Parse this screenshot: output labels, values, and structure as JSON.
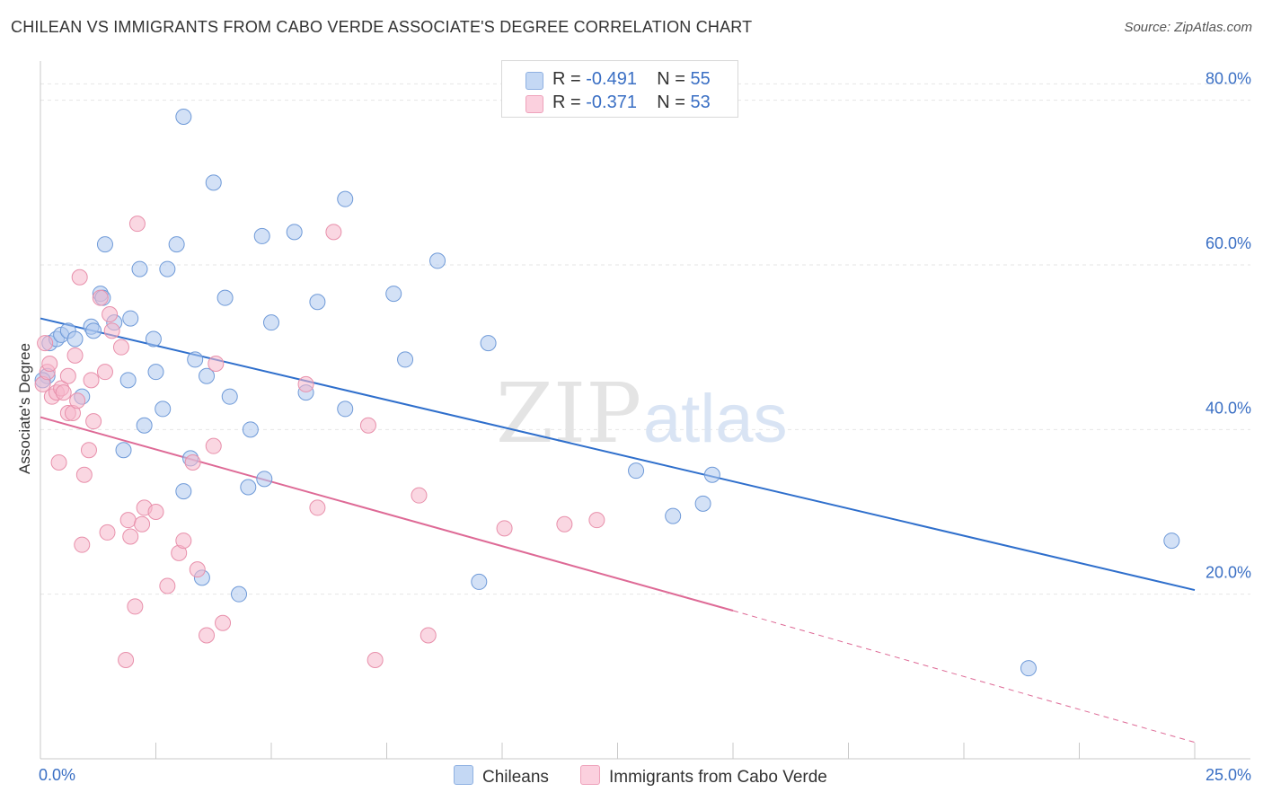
{
  "header": {
    "title": "CHILEAN VS IMMIGRANTS FROM CABO VERDE ASSOCIATE'S DEGREE CORRELATION CHART",
    "source": "Source: ZipAtlas.com"
  },
  "watermark": {
    "part1": "ZIP",
    "part2": "atlas"
  },
  "legend": {
    "rows": [
      {
        "r_label": "R =",
        "r_value": "-0.491",
        "n_label": "N =",
        "n_value": "55",
        "color": "#aec8ee"
      },
      {
        "r_label": "R =",
        "r_value": "-0.371",
        "n_label": "N =",
        "n_value": "53",
        "color": "#f6b7cb"
      }
    ]
  },
  "bottom_legend": {
    "series1": "Chileans",
    "series2": "Immigrants from Cabo Verde"
  },
  "chart_data": {
    "type": "scatter",
    "title": "CHILEAN VS IMMIGRANTS FROM CABO VERDE ASSOCIATE'S DEGREE CORRELATION CHART",
    "xlabel": "",
    "ylabel": "Associate's Degree",
    "xlim": [
      0,
      25
    ],
    "ylim": [
      0,
      84
    ],
    "x_ticks": [
      "0.0%",
      "25.0%"
    ],
    "y_ticks": [
      {
        "value": 20,
        "label": "20.0%"
      },
      {
        "value": 40,
        "label": "40.0%"
      },
      {
        "value": 60,
        "label": "60.0%"
      },
      {
        "value": 80,
        "label": "80.0%"
      }
    ],
    "grid": true,
    "legend_position": "top-center",
    "series": [
      {
        "name": "Chileans",
        "color": "#aec8ee",
        "stroke": "#6f9ad8",
        "trend_color": "#2f6fcc",
        "trend": {
          "x0": 0,
          "y0": 53.5,
          "x1": 25,
          "y1": 20.5
        },
        "points": [
          [
            0.15,
            46.5
          ],
          [
            0.2,
            50.5
          ],
          [
            0.35,
            51
          ],
          [
            0.45,
            51.5
          ],
          [
            0.6,
            52
          ],
          [
            0.75,
            51
          ],
          [
            0.9,
            44
          ],
          [
            1.1,
            52.5
          ],
          [
            1.15,
            52
          ],
          [
            1.3,
            56.5
          ],
          [
            1.35,
            56
          ],
          [
            1.4,
            62.5
          ],
          [
            1.6,
            53
          ],
          [
            1.8,
            37.5
          ],
          [
            1.9,
            46
          ],
          [
            1.95,
            53.5
          ],
          [
            2.15,
            59.5
          ],
          [
            2.25,
            40.5
          ],
          [
            2.45,
            51
          ],
          [
            2.5,
            47
          ],
          [
            2.65,
            42.5
          ],
          [
            2.75,
            59.5
          ],
          [
            2.95,
            62.5
          ],
          [
            3.1,
            78
          ],
          [
            3.1,
            32.5
          ],
          [
            3.25,
            36.5
          ],
          [
            3.35,
            48.5
          ],
          [
            3.5,
            22
          ],
          [
            3.6,
            46.5
          ],
          [
            3.75,
            70
          ],
          [
            4.0,
            56
          ],
          [
            4.1,
            44
          ],
          [
            4.3,
            20
          ],
          [
            4.55,
            40
          ],
          [
            4.5,
            33
          ],
          [
            4.8,
            63.5
          ],
          [
            4.85,
            34
          ],
          [
            5.0,
            53
          ],
          [
            5.5,
            64
          ],
          [
            5.75,
            44.5
          ],
          [
            6.0,
            55.5
          ],
          [
            6.6,
            68
          ],
          [
            6.6,
            42.5
          ],
          [
            7.65,
            56.5
          ],
          [
            7.9,
            48.5
          ],
          [
            8.6,
            60.5
          ],
          [
            9.5,
            21.5
          ],
          [
            9.7,
            50.5
          ],
          [
            12.9,
            35
          ],
          [
            13.7,
            29.5
          ],
          [
            14.35,
            31
          ],
          [
            14.55,
            34.5
          ],
          [
            21.4,
            11
          ],
          [
            24.5,
            26.5
          ],
          [
            0.05,
            46
          ]
        ]
      },
      {
        "name": "Immigrants from Cabo Verde",
        "color": "#f6b7cb",
        "stroke": "#e890ab",
        "trend_color": "#de6a96",
        "trend": {
          "x0": 0,
          "y0": 41.5,
          "x1": 15,
          "y1": 18
        },
        "trend_dashed": {
          "x0": 15,
          "y0": 18,
          "x1": 25,
          "y1": 2
        },
        "points": [
          [
            0.05,
            45.5
          ],
          [
            0.1,
            50.5
          ],
          [
            0.15,
            47
          ],
          [
            0.25,
            44
          ],
          [
            0.35,
            44.5
          ],
          [
            0.4,
            36
          ],
          [
            0.45,
            45
          ],
          [
            0.5,
            44.5
          ],
          [
            0.6,
            42
          ],
          [
            0.6,
            46.5
          ],
          [
            0.7,
            42
          ],
          [
            0.75,
            49
          ],
          [
            0.8,
            43.5
          ],
          [
            0.85,
            58.5
          ],
          [
            0.9,
            26
          ],
          [
            0.95,
            34.5
          ],
          [
            1.05,
            37.5
          ],
          [
            1.1,
            46
          ],
          [
            1.15,
            41
          ],
          [
            1.3,
            56
          ],
          [
            1.4,
            47
          ],
          [
            1.45,
            27.5
          ],
          [
            1.5,
            54
          ],
          [
            1.55,
            52
          ],
          [
            1.75,
            50
          ],
          [
            1.85,
            12
          ],
          [
            1.9,
            29
          ],
          [
            1.95,
            27
          ],
          [
            2.05,
            18.5
          ],
          [
            2.1,
            65
          ],
          [
            2.2,
            28.5
          ],
          [
            2.25,
            30.5
          ],
          [
            2.5,
            30
          ],
          [
            2.75,
            21
          ],
          [
            3.0,
            25
          ],
          [
            3.1,
            26.5
          ],
          [
            3.3,
            36
          ],
          [
            3.4,
            23
          ],
          [
            3.6,
            15
          ],
          [
            3.75,
            38
          ],
          [
            3.8,
            48
          ],
          [
            3.95,
            16.5
          ],
          [
            5.75,
            45.5
          ],
          [
            6.0,
            30.5
          ],
          [
            6.35,
            64
          ],
          [
            7.1,
            40.5
          ],
          [
            7.25,
            12
          ],
          [
            8.2,
            32
          ],
          [
            8.4,
            15
          ],
          [
            10.05,
            28
          ],
          [
            11.35,
            28.5
          ],
          [
            12.05,
            29
          ],
          [
            0.2,
            48
          ]
        ]
      }
    ]
  }
}
